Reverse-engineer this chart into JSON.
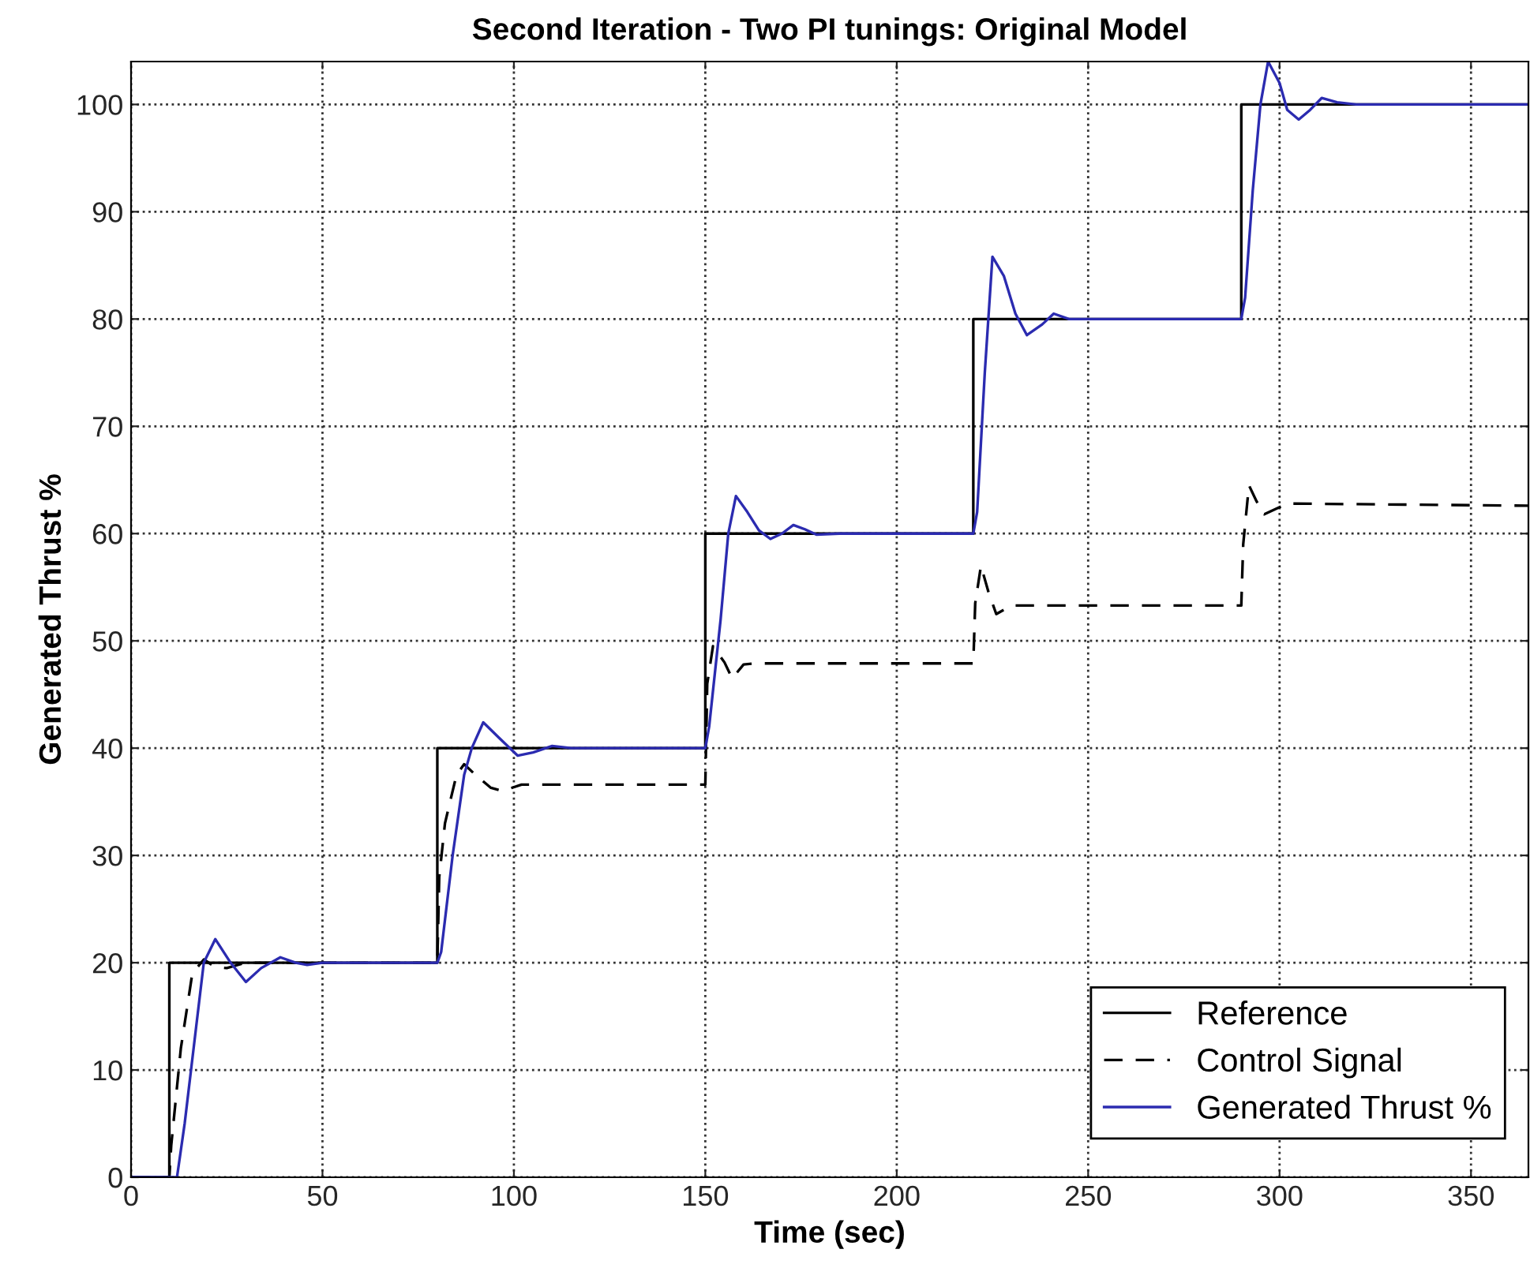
{
  "chart_data": {
    "type": "line",
    "title": "Second Iteration - Two PI tunings: Original Model",
    "xlabel": "Time (sec)",
    "ylabel": "Generated Thrust %",
    "xlim": [
      0,
      365
    ],
    "ylim": [
      0,
      104
    ],
    "xticks": [
      0,
      50,
      100,
      150,
      200,
      250,
      300,
      350
    ],
    "yticks": [
      0,
      10,
      20,
      30,
      40,
      50,
      60,
      70,
      80,
      90,
      100
    ],
    "grid": true,
    "legend": "bottom right",
    "marker": "none",
    "series": [
      {
        "name": "Reference",
        "color": "#000000",
        "line_style": "solid",
        "x": [
          0,
          10,
          10,
          80,
          80,
          150,
          150,
          220,
          220,
          290,
          290,
          365
        ],
        "values": [
          0,
          0,
          20,
          20,
          40,
          40,
          60,
          60,
          80,
          80,
          100,
          100
        ]
      },
      {
        "name": "Control Signal",
        "color": "#000000",
        "line_style": "dashed",
        "x": [
          0,
          10,
          10.5,
          13,
          16,
          19,
          22,
          25,
          30,
          80,
          80.5,
          82,
          85,
          87,
          90,
          94,
          97,
          102,
          150,
          150.5,
          152,
          155,
          157,
          160,
          163,
          220,
          220.5,
          222,
          224,
          226,
          230,
          290,
          290.5,
          292,
          294,
          296,
          299,
          302,
          365
        ],
        "values": [
          0,
          0,
          3,
          12,
          19,
          20.3,
          19.6,
          19.5,
          20,
          20,
          28,
          33,
          37.5,
          38.5,
          37.5,
          36.3,
          36,
          36.6,
          36.6,
          46,
          49.5,
          48,
          46.5,
          47.8,
          47.9,
          47.9,
          53.5,
          57,
          54.5,
          52.5,
          53.3,
          53.3,
          59,
          64.5,
          63,
          61.8,
          62.3,
          62.8,
          62.6
        ]
      },
      {
        "name": "Generated Thrust %",
        "color": "#2b2bb0",
        "line_style": "solid",
        "x": [
          0,
          12,
          14,
          17,
          19,
          22,
          26,
          30,
          34,
          39,
          43,
          46,
          50,
          80,
          81,
          84,
          87,
          89,
          92,
          96,
          101,
          105,
          110,
          115,
          150,
          151,
          154,
          156,
          158,
          161,
          164,
          167,
          170,
          173,
          176,
          179,
          185,
          220,
          221,
          223,
          225,
          228,
          231,
          234,
          238,
          241,
          245,
          250,
          290,
          291,
          293,
          295,
          297,
          300,
          302,
          305,
          308,
          311,
          315,
          320,
          365
        ],
        "values": [
          0,
          0,
          5,
          14,
          20,
          22.2,
          20,
          18.2,
          19.5,
          20.5,
          20,
          19.8,
          20,
          20,
          21,
          30,
          37.5,
          40,
          42.4,
          41,
          39.3,
          39.6,
          40.2,
          40,
          40,
          42,
          52,
          60,
          63.5,
          62,
          60.3,
          59.5,
          60,
          60.8,
          60.4,
          59.9,
          60,
          60,
          62,
          75,
          85.8,
          84,
          80.5,
          78.5,
          79.5,
          80.5,
          80,
          80,
          80,
          82,
          92,
          100,
          104,
          102,
          99.5,
          98.6,
          99.5,
          100.6,
          100.2,
          100,
          100
        ]
      }
    ]
  }
}
